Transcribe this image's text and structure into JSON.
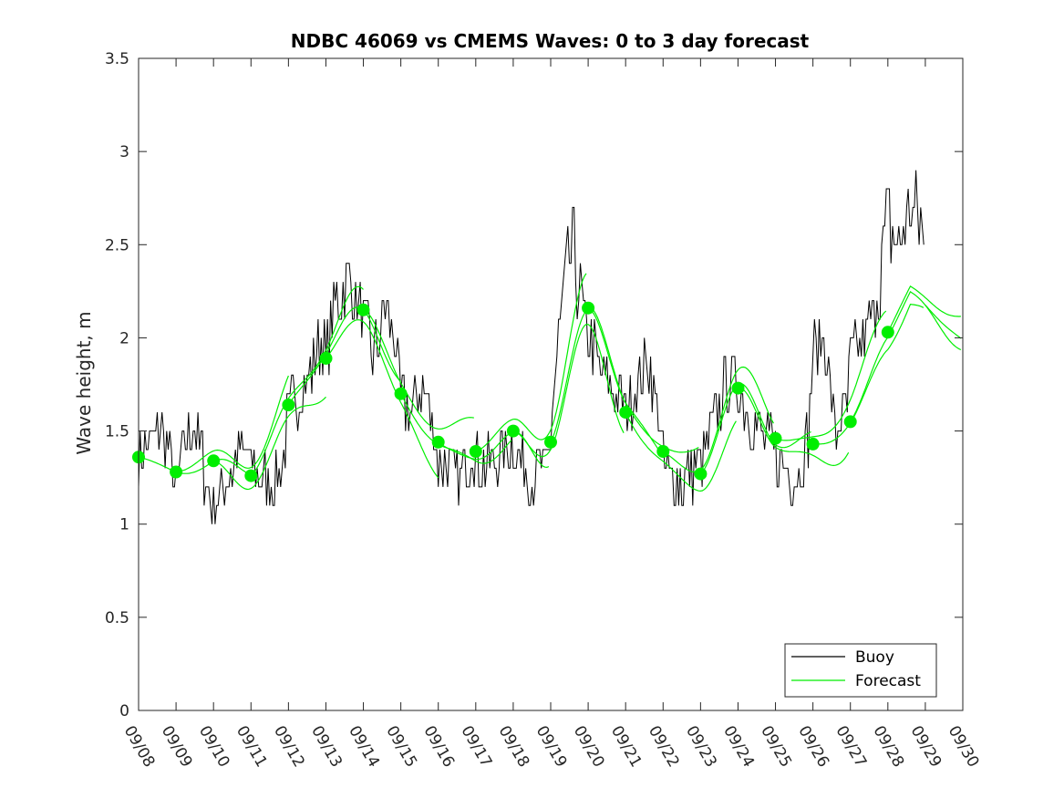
{
  "chart_data": {
    "type": "line",
    "title": "NDBC 46069 vs CMEMS Waves: 0 to 3 day forecast",
    "ylabel": "Wave height, m",
    "xlabel": "",
    "ylim": [
      0,
      3.5
    ],
    "yticks": [
      0,
      0.5,
      1,
      1.5,
      2,
      2.5,
      3,
      3.5
    ],
    "ytick_labels": [
      "0",
      "0.5",
      "1",
      "1.5",
      "2",
      "2.5",
      "3",
      "3.5"
    ],
    "xlim_days": [
      0,
      22
    ],
    "xtick_labels": [
      "09/08",
      "09/09",
      "09/10",
      "09/11",
      "09/12",
      "09/13",
      "09/14",
      "09/15",
      "09/16",
      "09/17",
      "09/18",
      "09/19",
      "09/20",
      "09/21",
      "09/22",
      "09/23",
      "09/24",
      "09/25",
      "09/26",
      "09/27",
      "09/28",
      "09/29",
      "09/30"
    ],
    "grid": false,
    "legend": {
      "position": "bottom-right",
      "entries": [
        "Buoy",
        "Forecast"
      ]
    },
    "colors": {
      "buoy": "#000000",
      "forecast": "#00ee00"
    },
    "buoy_anchor_values": {
      "x_days": [
        0,
        0.3,
        0.6,
        0.9,
        1.0,
        1.2,
        1.5,
        1.8,
        2.0,
        2.3,
        2.6,
        2.9,
        3.0,
        3.3,
        3.6,
        3.9,
        4.0,
        4.3,
        4.6,
        4.9,
        5.0,
        5.3,
        5.6,
        5.9,
        6.0,
        6.3,
        6.6,
        6.9,
        7.0,
        7.3,
        7.6,
        7.9,
        8.0,
        8.3,
        8.6,
        8.9,
        9.0,
        9.3,
        9.6,
        9.9,
        10.0,
        10.3,
        10.6,
        10.9,
        11.0,
        11.3,
        11.6,
        11.9,
        12.0,
        12.3,
        12.6,
        12.9,
        13.0,
        13.3,
        13.6,
        13.9,
        14.0,
        14.3,
        14.6,
        14.9,
        15.0,
        15.3,
        15.6,
        15.9,
        16.0,
        16.3,
        16.6,
        16.9,
        17.0,
        17.3,
        17.6,
        17.9,
        18.0,
        18.3,
        18.6,
        18.9,
        19.0,
        19.3,
        19.6,
        19.9,
        20.0,
        20.3,
        20.6,
        20.9,
        21.0
      ],
      "y": [
        1.35,
        1.45,
        1.5,
        1.3,
        1.2,
        1.4,
        1.55,
        1.25,
        1.1,
        1.2,
        1.35,
        1.4,
        1.3,
        1.25,
        1.2,
        1.4,
        1.6,
        1.7,
        1.8,
        2.0,
        1.9,
        2.2,
        2.3,
        2.15,
        2.1,
        1.9,
        2.2,
        1.9,
        1.65,
        1.6,
        1.75,
        1.5,
        1.35,
        1.3,
        1.25,
        1.4,
        1.35,
        1.3,
        1.35,
        1.4,
        1.45,
        1.3,
        1.25,
        1.3,
        1.5,
        2.2,
        2.5,
        2.1,
        2.0,
        1.85,
        1.7,
        1.65,
        1.6,
        1.75,
        1.9,
        1.55,
        1.35,
        1.2,
        1.25,
        1.3,
        1.3,
        1.5,
        1.7,
        1.8,
        1.75,
        1.6,
        1.5,
        1.4,
        1.35,
        1.3,
        1.25,
        1.5,
        1.9,
        2.0,
        1.5,
        1.6,
        1.9,
        1.95,
        2.1,
        2.5,
        2.6,
        2.5,
        2.7,
        2.6,
        2.35
      ]
    },
    "forecast_markers": {
      "x_days": [
        0,
        1,
        2,
        3,
        4,
        5,
        6,
        7,
        8,
        9,
        10,
        11,
        12,
        13,
        14,
        15,
        16,
        17,
        18,
        19,
        20
      ],
      "y": [
        1.36,
        1.28,
        1.34,
        1.26,
        1.64,
        1.89,
        2.15,
        1.7,
        1.44,
        1.39,
        1.5,
        1.44,
        2.16,
        1.6,
        1.39,
        1.27,
        1.73,
        1.46,
        1.43,
        1.55,
        2.03
      ]
    }
  }
}
